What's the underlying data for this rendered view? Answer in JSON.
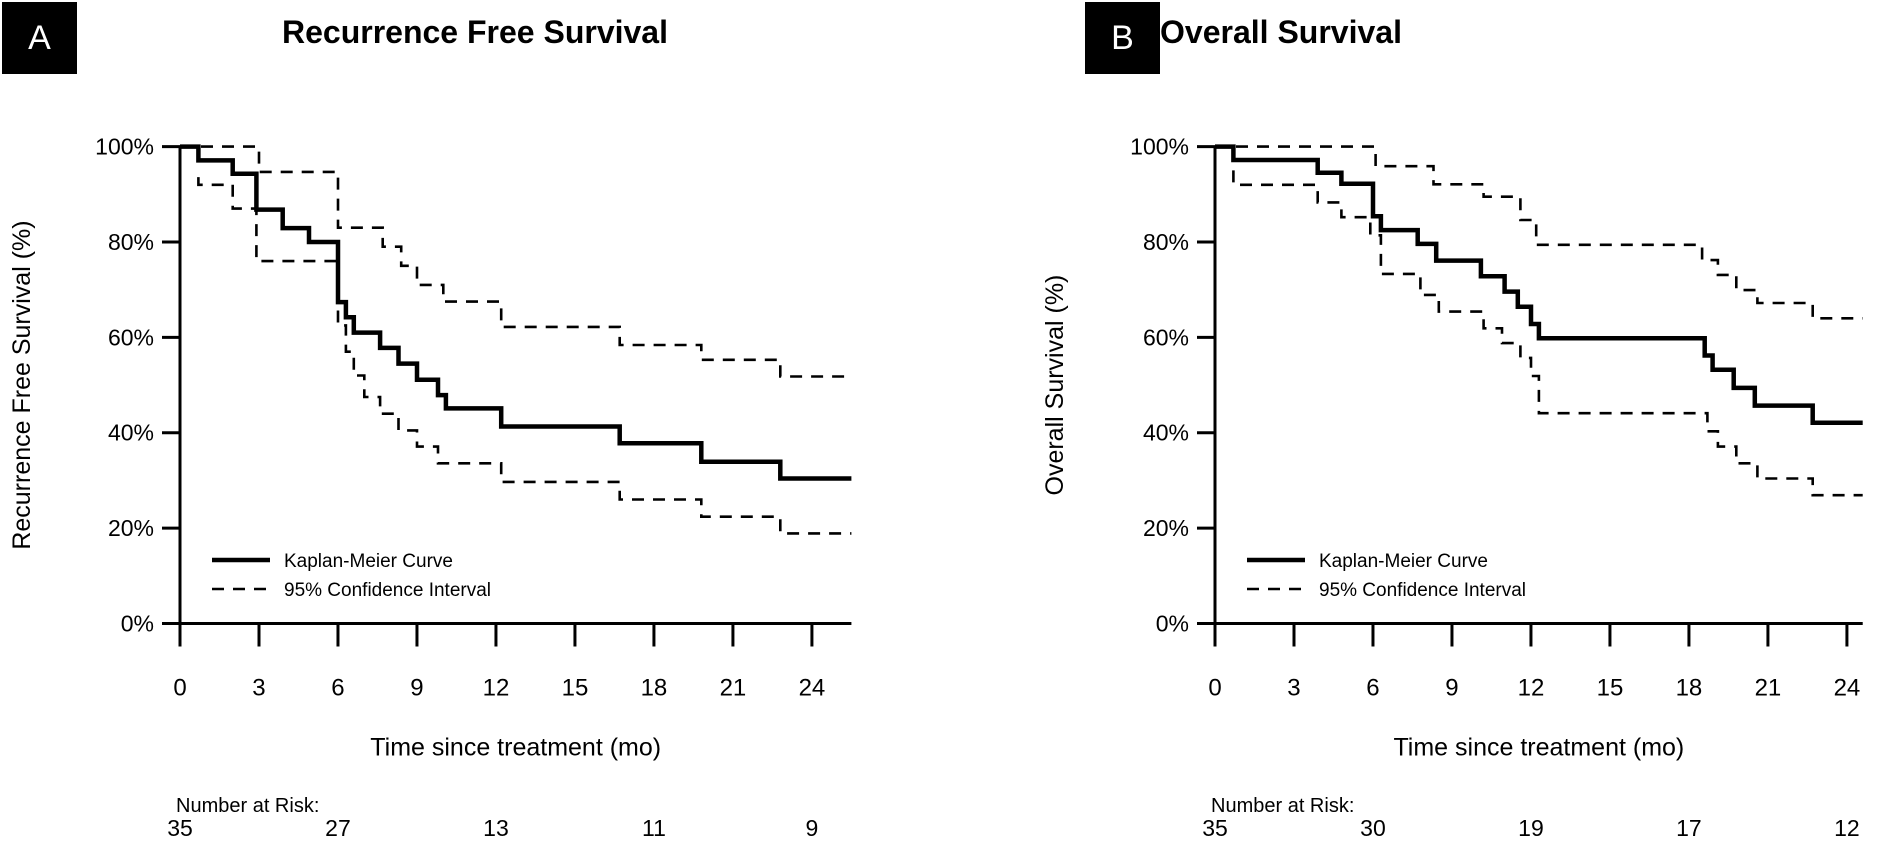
{
  "figure": {
    "background": "#ffffff",
    "foreground": "#000000"
  },
  "chart_data": [
    {
      "type": "line",
      "subtype": "kaplan-meier-step",
      "panel_label": "A",
      "title": "Recurrence Free Survival",
      "ylabel": "Recurrence Free Survival (%)",
      "xlabel": "Time since treatment (mo)",
      "xticks": [
        0,
        3,
        6,
        9,
        12,
        15,
        18,
        21,
        24
      ],
      "ytick_labels": [
        "0%",
        "20%",
        "40%",
        "60%",
        "80%",
        "100%"
      ],
      "ytick_values": [
        0,
        20,
        40,
        60,
        80,
        100
      ],
      "xlim": [
        0,
        25.5
      ],
      "ylim": [
        0,
        100
      ],
      "grid": false,
      "legend_position": "lower-left-inside",
      "legend": [
        {
          "label": "Kaplan-Meier Curve",
          "style": "solid"
        },
        {
          "label": "95% Confidence Interval",
          "style": "dashed"
        }
      ],
      "series": [
        {
          "name": "Kaplan-Meier Curve",
          "style": "solid",
          "points": [
            [
              0,
              100
            ],
            [
              0.7,
              97.1
            ],
            [
              2.0,
              94.3
            ],
            [
              2.9,
              86.8
            ],
            [
              3.9,
              82.9
            ],
            [
              4.9,
              80.0
            ],
            [
              6.0,
              67.4
            ],
            [
              6.3,
              64.2
            ],
            [
              6.6,
              61.0
            ],
            [
              7.6,
              57.8
            ],
            [
              8.3,
              54.5
            ],
            [
              9.0,
              51.1
            ],
            [
              9.8,
              47.9
            ],
            [
              10.1,
              45.1
            ],
            [
              12.2,
              41.3
            ],
            [
              16.7,
              37.8
            ],
            [
              19.8,
              33.9
            ],
            [
              22.8,
              30.4
            ],
            [
              25.5,
              30.4
            ]
          ]
        },
        {
          "name": "95% CI upper",
          "style": "dashed",
          "points": [
            [
              0,
              100
            ],
            [
              3.0,
              94.7
            ],
            [
              6.0,
              83.0
            ],
            [
              7.7,
              79.0
            ],
            [
              8.4,
              75.0
            ],
            [
              9.0,
              71.0
            ],
            [
              10.0,
              67.5
            ],
            [
              12.2,
              62.2
            ],
            [
              16.7,
              58.4
            ],
            [
              19.8,
              55.3
            ],
            [
              22.8,
              51.8
            ],
            [
              25.5,
              51.8
            ]
          ]
        },
        {
          "name": "95% CI lower",
          "style": "dashed",
          "points": [
            [
              0.7,
              93.6
            ],
            [
              0.7,
              92.0
            ],
            [
              2.0,
              87.0
            ],
            [
              2.9,
              76.0
            ],
            [
              6.0,
              62.5
            ],
            [
              6.3,
              57.0
            ],
            [
              6.6,
              52.0
            ],
            [
              7.0,
              47.5
            ],
            [
              7.6,
              44.0
            ],
            [
              8.3,
              40.5
            ],
            [
              9.0,
              37.1
            ],
            [
              9.8,
              33.6
            ],
            [
              12.2,
              29.7
            ],
            [
              16.7,
              26.0
            ],
            [
              19.8,
              22.4
            ],
            [
              22.8,
              18.9
            ],
            [
              25.5,
              18.9
            ]
          ]
        }
      ],
      "risk_table": {
        "label": "Number at Risk:",
        "times": [
          0,
          6,
          12,
          18,
          24
        ],
        "counts": [
          "35",
          "27",
          "13",
          "11",
          "9"
        ]
      }
    },
    {
      "type": "line",
      "subtype": "kaplan-meier-step",
      "panel_label": "B",
      "title": "Overall Survival",
      "ylabel": "Overall Survival (%)",
      "xlabel": "Time since treatment (mo)",
      "xticks": [
        0,
        3,
        6,
        9,
        12,
        15,
        18,
        21,
        24
      ],
      "ytick_labels": [
        "0%",
        "20%",
        "40%",
        "60%",
        "80%",
        "100%"
      ],
      "ytick_values": [
        0,
        20,
        40,
        60,
        80,
        100
      ],
      "xlim": [
        0,
        24.6
      ],
      "ylim": [
        0,
        100
      ],
      "grid": false,
      "legend_position": "lower-left-inside",
      "legend": [
        {
          "label": "Kaplan-Meier Curve",
          "style": "solid"
        },
        {
          "label": "95% Confidence Interval",
          "style": "dashed"
        }
      ],
      "series": [
        {
          "name": "Kaplan-Meier Curve",
          "style": "solid",
          "points": [
            [
              0,
              100
            ],
            [
              0.7,
              97.2
            ],
            [
              3.9,
              94.5
            ],
            [
              4.8,
              92.2
            ],
            [
              6.0,
              85.4
            ],
            [
              6.3,
              82.5
            ],
            [
              7.7,
              79.6
            ],
            [
              8.4,
              76.1
            ],
            [
              10.1,
              72.8
            ],
            [
              11.0,
              69.6
            ],
            [
              11.5,
              66.4
            ],
            [
              12.0,
              62.8
            ],
            [
              12.3,
              59.8
            ],
            [
              18.6,
              56.2
            ],
            [
              18.9,
              53.2
            ],
            [
              19.7,
              49.4
            ],
            [
              20.5,
              45.7
            ],
            [
              22.7,
              42.1
            ],
            [
              24.6,
              42.1
            ]
          ]
        },
        {
          "name": "95% CI upper",
          "style": "dashed",
          "points": [
            [
              0,
              100
            ],
            [
              6.1,
              95.9
            ],
            [
              8.3,
              92.1
            ],
            [
              10.2,
              89.5
            ],
            [
              11.6,
              84.6
            ],
            [
              12.2,
              79.4
            ],
            [
              18.5,
              76.2
            ],
            [
              19.1,
              73.1
            ],
            [
              19.8,
              69.9
            ],
            [
              20.6,
              67.2
            ],
            [
              22.7,
              64.0
            ],
            [
              24.6,
              64.0
            ]
          ]
        },
        {
          "name": "95% CI lower",
          "style": "dashed",
          "points": [
            [
              0.7,
              95.0
            ],
            [
              0.7,
              92.0
            ],
            [
              3.9,
              88.3
            ],
            [
              4.8,
              85.2
            ],
            [
              5.9,
              81.4
            ],
            [
              6.3,
              73.3
            ],
            [
              7.8,
              68.9
            ],
            [
              8.5,
              65.4
            ],
            [
              10.2,
              61.9
            ],
            [
              10.9,
              58.8
            ],
            [
              11.6,
              55.7
            ],
            [
              12.0,
              51.9
            ],
            [
              12.3,
              44.1
            ],
            [
              18.7,
              40.3
            ],
            [
              19.1,
              37.1
            ],
            [
              19.8,
              33.6
            ],
            [
              20.6,
              30.4
            ],
            [
              22.7,
              26.9
            ],
            [
              24.6,
              26.9
            ]
          ]
        }
      ],
      "risk_table": {
        "label": "Number at Risk:",
        "times": [
          0,
          6,
          12,
          18,
          24
        ],
        "counts": [
          "35",
          "30",
          "19",
          "17",
          "12"
        ]
      }
    }
  ]
}
